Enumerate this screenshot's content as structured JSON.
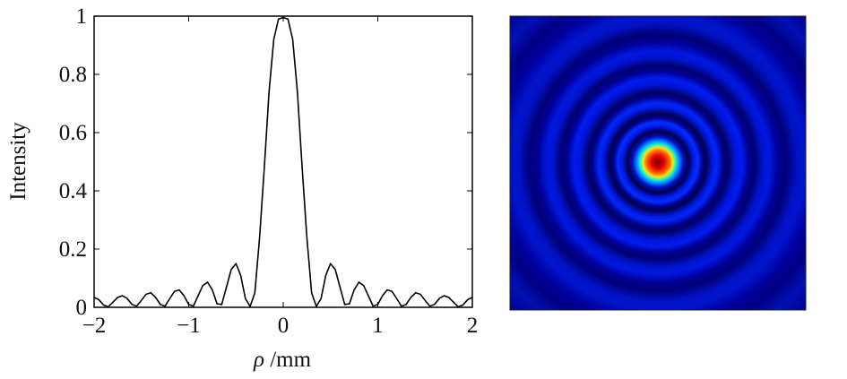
{
  "chart_data": [
    {
      "type": "line",
      "title": "",
      "xlabel": "ρ /mm",
      "xlabel_symbol": "ρ",
      "xlabel_unit": " /mm",
      "ylabel": "Intensity",
      "xlim": [
        -2,
        2
      ],
      "ylim": [
        0,
        1
      ],
      "x_ticks": [
        -2,
        -1,
        0,
        1,
        2
      ],
      "x_tick_labels": [
        "−2",
        "−1",
        "0",
        "1",
        "2"
      ],
      "y_ticks": [
        0,
        0.2,
        0.4,
        0.6,
        0.8,
        1
      ],
      "y_tick_labels": [
        "0",
        "0.2",
        "0.4",
        "0.6",
        "0.8",
        "1"
      ],
      "grid": false,
      "line_color": "#000000",
      "series": [
        {
          "x": [
            -2.0,
            -1.95,
            -1.9,
            -1.85,
            -1.8,
            -1.75,
            -1.7,
            -1.65,
            -1.6,
            -1.55,
            -1.5,
            -1.45,
            -1.4,
            -1.35,
            -1.3,
            -1.25,
            -1.2,
            -1.15,
            -1.1,
            -1.05,
            -1.0,
            -0.95,
            -0.9,
            -0.85,
            -0.8,
            -0.75,
            -0.7,
            -0.65,
            -0.6,
            -0.55,
            -0.5,
            -0.45,
            -0.4,
            -0.35,
            -0.3,
            -0.25,
            -0.2,
            -0.15,
            -0.1,
            -0.05,
            0.0,
            0.05,
            0.1,
            0.15,
            0.2,
            0.25,
            0.3,
            0.35,
            0.4,
            0.45,
            0.5,
            0.55,
            0.6,
            0.65,
            0.7,
            0.75,
            0.8,
            0.85,
            0.9,
            0.95,
            1.0,
            1.05,
            1.1,
            1.15,
            1.2,
            1.25,
            1.3,
            1.35,
            1.4,
            1.45,
            1.5,
            1.55,
            1.6,
            1.65,
            1.7,
            1.75,
            1.8,
            1.85,
            1.9,
            1.95,
            2.0
          ],
          "values": [
            0.034,
            0.026,
            0.008,
            0.002,
            0.018,
            0.034,
            0.04,
            0.03,
            0.01,
            0.004,
            0.024,
            0.045,
            0.05,
            0.034,
            0.01,
            0.004,
            0.03,
            0.055,
            0.06,
            0.04,
            0.01,
            0.004,
            0.04,
            0.075,
            0.086,
            0.06,
            0.012,
            0.01,
            0.07,
            0.13,
            0.15,
            0.11,
            0.03,
            0.003,
            0.05,
            0.24,
            0.48,
            0.74,
            0.92,
            0.99,
            0.995,
            0.99,
            0.92,
            0.74,
            0.48,
            0.24,
            0.05,
            0.003,
            0.03,
            0.11,
            0.15,
            0.13,
            0.07,
            0.01,
            0.012,
            0.06,
            0.086,
            0.075,
            0.04,
            0.004,
            0.01,
            0.04,
            0.06,
            0.055,
            0.03,
            0.004,
            0.01,
            0.034,
            0.05,
            0.045,
            0.024,
            0.004,
            0.01,
            0.03,
            0.04,
            0.034,
            0.018,
            0.002,
            0.008,
            0.026,
            0.034
          ]
        }
      ]
    },
    {
      "type": "heatmap",
      "title": "",
      "description_kind": "radial intensity pattern",
      "colormap": "jet",
      "colors": {
        "background": "#00008a",
        "ring_bright": "#0a22ff",
        "ring_dark": "#000066",
        "center_peak": "#8b0000",
        "center_mid": "#ff2000",
        "center_halo": "#ffe000"
      }
    }
  ]
}
